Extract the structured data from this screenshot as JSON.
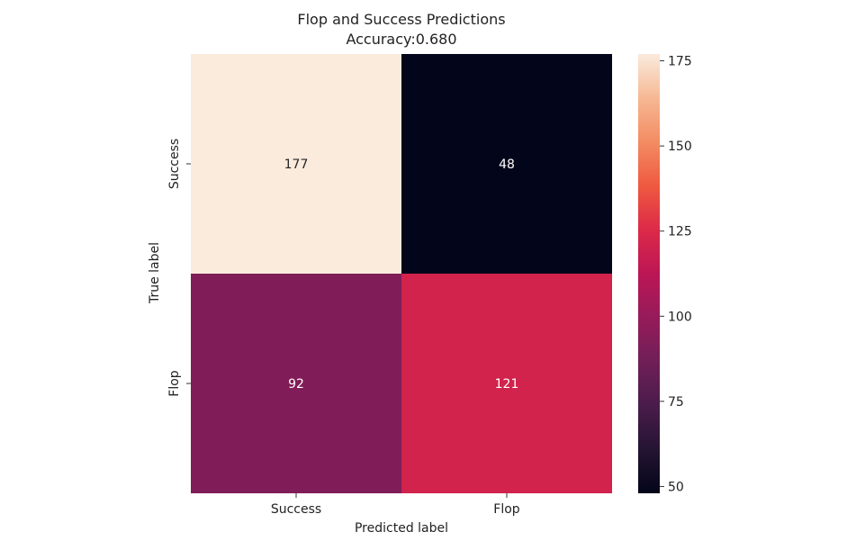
{
  "chart_data": {
    "type": "heatmap",
    "title": "Flop and Success Predictions",
    "subtitle": "Accuracy:0.680",
    "xlabel": "Predicted label",
    "ylabel": "True label",
    "x_categories": [
      "Success",
      "Flop"
    ],
    "y_categories": [
      "Success",
      "Flop"
    ],
    "matrix": [
      [
        177,
        48
      ],
      [
        92,
        121
      ]
    ],
    "colormap": "rocket",
    "colorbar": {
      "ticks": [
        50,
        75,
        100,
        125,
        150,
        175
      ],
      "range": [
        48,
        177
      ]
    }
  }
}
